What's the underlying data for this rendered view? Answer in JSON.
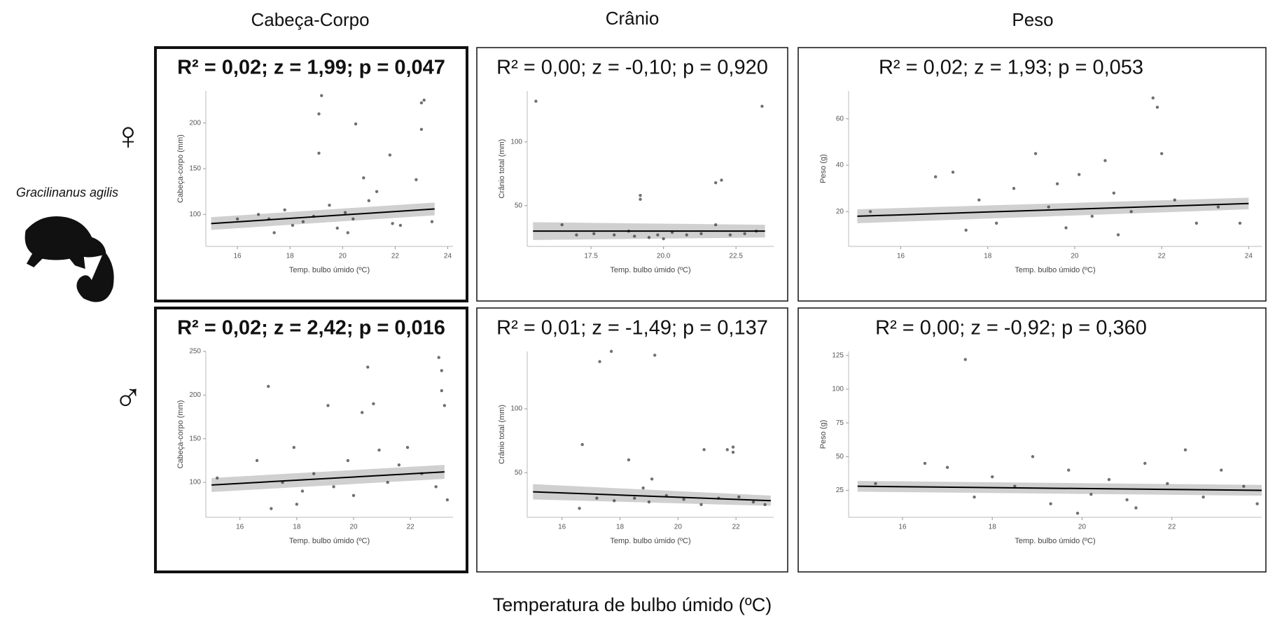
{
  "column_titles": [
    "Cabeça-Corpo",
    "Crânio",
    "Peso"
  ],
  "row_labels": [
    "♀",
    "♂"
  ],
  "species": "Gracilinanus agilis",
  "x_axis_label": "Temperatura de bulbo úmido (ºC)",
  "chart_data": [
    {
      "type": "scatter",
      "title": "R² = 0,02; z = 1,99; p = 0,047",
      "highlight": true,
      "x_label": "Temp. bulbo úmido (ºC)",
      "y_label": "Cabeça-corpo (mm)",
      "xlim": [
        14.8,
        24.2
      ],
      "xticks": [
        16,
        18,
        20,
        22,
        24
      ],
      "ylim": [
        65,
        235
      ],
      "yticks": [
        100,
        150,
        200
      ],
      "points": {
        "x": [
          16.8,
          17.2,
          17.8,
          18.1,
          18.5,
          18.9,
          19.1,
          19.1,
          19.2,
          19.5,
          19.8,
          20.1,
          20.4,
          20.5,
          20.8,
          21.0,
          21.3,
          21.8,
          21.9,
          22.2,
          22.8,
          23.0,
          23.0,
          23.1,
          23.4,
          16.0,
          17.4,
          20.2
        ],
        "values": [
          100,
          95,
          105,
          88,
          92,
          98,
          167,
          210,
          230,
          110,
          85,
          102,
          95,
          199,
          140,
          115,
          125,
          165,
          90,
          88,
          138,
          193,
          222,
          225,
          92,
          95,
          80,
          80
        ]
      },
      "fit": {
        "x": [
          15,
          23.5
        ],
        "values": [
          90,
          106
        ],
        "band_low": [
          83,
          99
        ],
        "band_high": [
          97,
          113
        ]
      }
    },
    {
      "type": "scatter",
      "title": "R² = 0,00; z = -0,10; p = 0,920",
      "highlight": false,
      "x_label": "Temp. bulbo úmido (ºC)",
      "y_label": "Crânio total (mm)",
      "xlim": [
        15.3,
        23.8
      ],
      "xticks": [
        {
          "value": 17.5,
          "label": "17.5"
        },
        {
          "value": 20,
          "label": "20.0"
        },
        {
          "value": 22.5,
          "label": "22.5"
        }
      ],
      "ylim": [
        18,
        140
      ],
      "yticks": [
        50,
        100
      ],
      "points": {
        "x": [
          15.6,
          23.4,
          19.2,
          19.2,
          21.8,
          22.0,
          16.5,
          17.0,
          17.6,
          18.3,
          19.0,
          19.5,
          19.8,
          20.3,
          20.8,
          21.3,
          21.8,
          22.3,
          22.8,
          23.2,
          18.8,
          20.0
        ],
        "values": [
          132,
          128,
          58,
          55,
          68,
          70,
          35,
          27,
          28,
          27,
          26,
          25,
          27,
          29,
          27,
          28,
          35,
          27,
          28,
          30,
          30,
          24
        ]
      },
      "fit": {
        "x": [
          15.5,
          23.5
        ],
        "values": [
          30,
          30
        ],
        "band_low": [
          23,
          25
        ],
        "band_high": [
          37,
          35
        ]
      }
    },
    {
      "type": "scatter",
      "title": "R² = 0,02; z = 1,93; p = 0,053",
      "highlight": false,
      "x_label": "Temp. bulbo úmido (ºC)",
      "y_label": "Peso (g)",
      "xlim": [
        14.8,
        24.3
      ],
      "xticks": [
        16,
        18,
        20,
        22,
        24
      ],
      "ylim": [
        5,
        72
      ],
      "yticks": [
        20,
        40,
        60
      ],
      "points": {
        "x": [
          15.3,
          16.8,
          17.2,
          17.8,
          18.2,
          18.6,
          19.1,
          19.4,
          19.8,
          20.1,
          20.4,
          20.9,
          21.3,
          21.8,
          21.9,
          22.0,
          22.3,
          22.8,
          23.3,
          23.8,
          17.5,
          19.6,
          21.0,
          20.7
        ],
        "values": [
          20,
          35,
          37,
          25,
          15,
          30,
          45,
          22,
          13,
          36,
          18,
          28,
          20,
          69,
          65,
          45,
          25,
          15,
          22,
          15,
          12,
          32,
          10,
          42
        ]
      },
      "fit": {
        "x": [
          15,
          24
        ],
        "values": [
          18,
          23.5
        ],
        "band_low": [
          15,
          21
        ],
        "band_high": [
          21,
          26
        ]
      }
    },
    {
      "type": "scatter",
      "title": "R² = 0,02; z = 2,42; p = 0,016",
      "highlight": true,
      "x_label": "Temp. bulbo úmido (ºC)",
      "y_label": "Cabeça-corpo (mm)",
      "xlim": [
        14.8,
        23.5
      ],
      "xticks": [
        16,
        18,
        20,
        22
      ],
      "ylim": [
        60,
        250
      ],
      "yticks": [
        100,
        150,
        200,
        250
      ],
      "points": {
        "x": [
          15.2,
          16.6,
          17.0,
          17.1,
          17.5,
          17.9,
          18.2,
          18.6,
          19.1,
          19.3,
          19.8,
          20.3,
          20.5,
          20.7,
          20.9,
          21.2,
          21.6,
          21.9,
          22.4,
          22.9,
          23.0,
          23.1,
          23.1,
          23.2,
          23.3,
          18.0,
          20.0
        ],
        "values": [
          105,
          125,
          210,
          70,
          100,
          140,
          90,
          110,
          188,
          95,
          125,
          180,
          232,
          190,
          137,
          100,
          120,
          140,
          110,
          95,
          243,
          228,
          205,
          188,
          80,
          75,
          85
        ]
      },
      "fit": {
        "x": [
          15,
          23.2
        ],
        "values": [
          97,
          112
        ],
        "band_low": [
          89,
          104
        ],
        "band_high": [
          105,
          120
        ]
      }
    },
    {
      "type": "scatter",
      "title": "R² = 0,01; z = -1,49; p = 0,137",
      "highlight": false,
      "x_label": "Temp. bulbo úmido (ºC)",
      "y_label": "Crânio total (mm)",
      "xlim": [
        14.8,
        23.3
      ],
      "xticks": [
        16,
        18,
        20,
        22
      ],
      "ylim": [
        15,
        145
      ],
      "yticks": [
        50,
        100
      ],
      "points": {
        "x": [
          16.7,
          17.3,
          17.7,
          18.3,
          19.1,
          19.2,
          20.9,
          21.7,
          21.9,
          21.9,
          16.6,
          17.2,
          17.8,
          18.5,
          19.0,
          19.6,
          20.2,
          20.8,
          21.4,
          22.1,
          22.6,
          23.0,
          18.8
        ],
        "values": [
          72,
          137,
          145,
          60,
          45,
          142,
          68,
          68,
          70,
          66,
          22,
          30,
          28,
          30,
          27,
          32,
          29,
          25,
          30,
          31,
          27,
          25,
          38
        ]
      },
      "fit": {
        "x": [
          15,
          23.2
        ],
        "values": [
          35,
          28
        ],
        "band_low": [
          29,
          24
        ],
        "band_high": [
          41,
          32
        ]
      }
    },
    {
      "type": "scatter",
      "title": "R² = 0,00; z = -0,92; p = 0,360",
      "highlight": false,
      "x_label": "Temp. bulbo úmido (ºC)",
      "y_label": "Peso (g)",
      "xlim": [
        14.8,
        24
      ],
      "xticks": [
        16,
        18,
        20,
        22
      ],
      "ylim": [
        5,
        128
      ],
      "yticks": [
        25,
        50,
        75,
        100,
        125
      ],
      "points": {
        "x": [
          15.4,
          16.5,
          17.0,
          17.4,
          17.6,
          18.0,
          18.5,
          18.9,
          19.3,
          19.7,
          20.2,
          20.6,
          21.0,
          21.4,
          21.9,
          22.3,
          22.7,
          23.1,
          23.6,
          23.9,
          19.9,
          21.2
        ],
        "values": [
          30,
          45,
          42,
          122,
          20,
          35,
          28,
          50,
          15,
          40,
          22,
          33,
          18,
          45,
          30,
          55,
          20,
          40,
          28,
          15,
          8,
          12
        ]
      },
      "fit": {
        "x": [
          15,
          24
        ],
        "values": [
          28,
          25
        ],
        "band_low": [
          24,
          21
        ],
        "band_high": [
          32,
          29
        ]
      }
    }
  ]
}
